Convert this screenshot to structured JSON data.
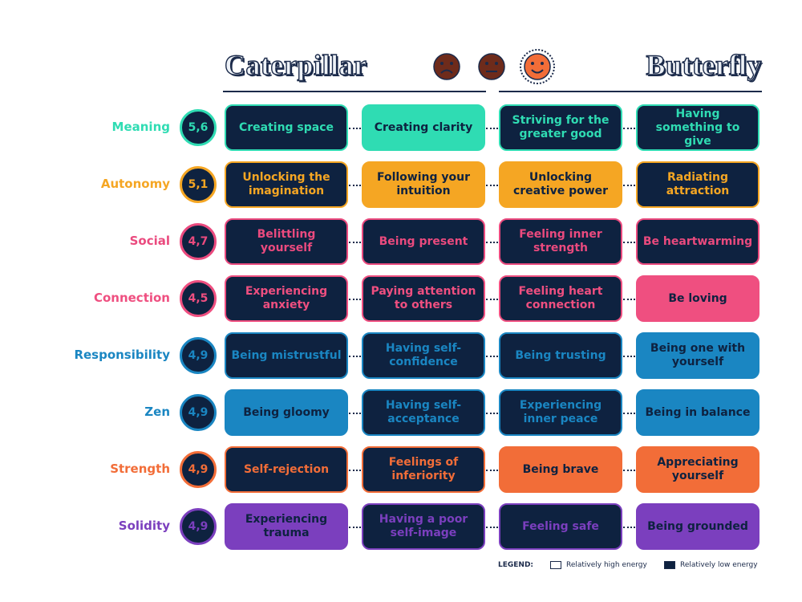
{
  "header": {
    "left_title": "Caterpillar",
    "right_title": "Butterfly"
  },
  "rows": [
    {
      "label": "Meaning",
      "score": "5,6",
      "color": "#2fdcb3",
      "cells": [
        {
          "text": "Creating space",
          "energy": "low"
        },
        {
          "text": "Creating clarity",
          "energy": "high"
        },
        {
          "text": "Striving for the greater good",
          "energy": "low"
        },
        {
          "text": "Having something to give",
          "energy": "low"
        }
      ]
    },
    {
      "label": "Autonomy",
      "score": "5,1",
      "color": "#f5a623",
      "cells": [
        {
          "text": "Unlocking the imagination",
          "energy": "low"
        },
        {
          "text": "Following your intuition",
          "energy": "high"
        },
        {
          "text": "Unlocking creative power",
          "energy": "high"
        },
        {
          "text": "Radiating attraction",
          "energy": "low"
        }
      ]
    },
    {
      "label": "Social",
      "score": "4,7",
      "color": "#ea4a7e",
      "cells": [
        {
          "text": "Belittling yourself",
          "energy": "low"
        },
        {
          "text": "Being present",
          "energy": "low"
        },
        {
          "text": "Feeling inner strength",
          "energy": "low"
        },
        {
          "text": "Be heartwarming",
          "energy": "low"
        }
      ]
    },
    {
      "label": "Connection",
      "score": "4,5",
      "color": "#ef4f80",
      "cells": [
        {
          "text": "Experiencing anxiety",
          "energy": "low"
        },
        {
          "text": "Paying attention to others",
          "energy": "low"
        },
        {
          "text": "Feeling heart connection",
          "energy": "low"
        },
        {
          "text": "Be loving",
          "energy": "high"
        }
      ]
    },
    {
      "label": "Responsibility",
      "score": "4,9",
      "color": "#1a86c2",
      "cells": [
        {
          "text": "Being mistrustful",
          "energy": "low"
        },
        {
          "text": "Having self-confidence",
          "energy": "low"
        },
        {
          "text": "Being trusting",
          "energy": "low"
        },
        {
          "text": "Being one with yourself",
          "energy": "high"
        }
      ]
    },
    {
      "label": "Zen",
      "score": "4,9",
      "color": "#1a86c2",
      "cells": [
        {
          "text": "Being gloomy",
          "energy": "high"
        },
        {
          "text": "Having self-acceptance",
          "energy": "low"
        },
        {
          "text": "Experiencing inner peace",
          "energy": "low"
        },
        {
          "text": "Being in balance",
          "energy": "high"
        }
      ]
    },
    {
      "label": "Strength",
      "score": "4,9",
      "color": "#f26d38",
      "cells": [
        {
          "text": "Self-rejection",
          "energy": "low"
        },
        {
          "text": "Feelings of inferiority",
          "energy": "low"
        },
        {
          "text": "Being brave",
          "energy": "high"
        },
        {
          "text": "Appreciating yourself",
          "energy": "high"
        }
      ]
    },
    {
      "label": "Solidity",
      "score": "4,9",
      "color": "#7b3fbe",
      "cells": [
        {
          "text": "Experiencing trauma",
          "energy": "high"
        },
        {
          "text": "Having a poor self-image",
          "energy": "low"
        },
        {
          "text": "Feeling safe",
          "energy": "low"
        },
        {
          "text": "Being grounded",
          "energy": "high"
        }
      ]
    }
  ],
  "legend": {
    "title": "LEGEND:",
    "high": "Relatively high energy",
    "low": "Relatively low energy"
  }
}
